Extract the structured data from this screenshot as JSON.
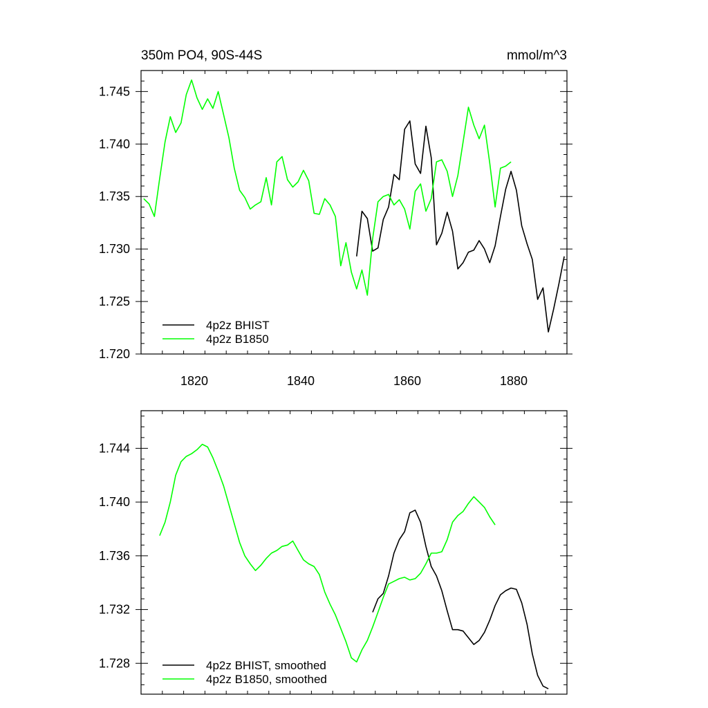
{
  "chart_data": [
    {
      "type": "line",
      "title_left": "350m PO4, 90S-44S",
      "title_right": "mmol/m^3",
      "xlim": [
        1810,
        1890
      ],
      "ylim": [
        1.72,
        1.747
      ],
      "yticks": [
        1.72,
        1.725,
        1.73,
        1.735,
        1.74,
        1.745
      ],
      "ytick_labels": [
        "1.720",
        "1.725",
        "1.730",
        "1.735",
        "1.740",
        "1.745"
      ],
      "xticks": [
        1820,
        1840,
        1860,
        1880
      ],
      "xtick_labels": [
        "1820",
        "1840",
        "1860",
        "1880"
      ],
      "legend_position": "bottom-left",
      "series": [
        {
          "name": "4p2z BHIST",
          "color": "#000000",
          "x": [
            1850.5,
            1851.5,
            1852.5,
            1853.5,
            1854.5,
            1855.5,
            1856.5,
            1857.5,
            1858.5,
            1859.5,
            1860.5,
            1861.5,
            1862.5,
            1863.5,
            1864.5,
            1865.5,
            1866.5,
            1867.5,
            1868.5,
            1869.5,
            1870.5,
            1871.5,
            1872.5,
            1873.5,
            1874.5,
            1875.5,
            1876.5,
            1877.5,
            1878.5,
            1879.5,
            1880.5,
            1881.5,
            1882.5,
            1883.5,
            1884.5,
            1885.5,
            1886.5,
            1887.5,
            1888.5,
            1889.5
          ],
          "y": [
            1.7293,
            1.7336,
            1.7329,
            1.7298,
            1.7301,
            1.7328,
            1.734,
            1.7371,
            1.7366,
            1.7414,
            1.7422,
            1.7381,
            1.7372,
            1.7417,
            1.7387,
            1.7304,
            1.7315,
            1.7335,
            1.7317,
            1.7281,
            1.7287,
            1.7297,
            1.7299,
            1.7308,
            1.73,
            1.7287,
            1.7303,
            1.7331,
            1.7357,
            1.7374,
            1.7356,
            1.7322,
            1.7305,
            1.729,
            1.7252,
            1.7263,
            1.7221,
            1.7243,
            1.7267,
            1.7293
          ]
        },
        {
          "name": "4p2z B1850",
          "color": "#00ff00",
          "x": [
            1810.5,
            1811.5,
            1812.5,
            1813.5,
            1814.5,
            1815.5,
            1816.5,
            1817.5,
            1818.5,
            1819.5,
            1820.5,
            1821.5,
            1822.5,
            1823.5,
            1824.5,
            1825.5,
            1826.5,
            1827.5,
            1828.5,
            1829.5,
            1830.5,
            1831.5,
            1832.5,
            1833.5,
            1834.5,
            1835.5,
            1836.5,
            1837.5,
            1838.5,
            1839.5,
            1840.5,
            1841.5,
            1842.5,
            1843.5,
            1844.5,
            1845.5,
            1846.5,
            1847.5,
            1848.5,
            1849.5,
            1850.5,
            1851.5,
            1852.5,
            1853.5,
            1854.5,
            1855.5,
            1856.5,
            1857.5,
            1858.5,
            1859.5,
            1860.5,
            1861.5,
            1862.5,
            1863.5,
            1864.5,
            1865.5,
            1866.5,
            1867.5,
            1868.5,
            1869.5,
            1870.5,
            1871.5,
            1872.5,
            1873.5,
            1874.5,
            1875.5,
            1876.5,
            1877.5,
            1878.5,
            1879.5
          ],
          "y": [
            1.7348,
            1.7343,
            1.7331,
            1.7367,
            1.7402,
            1.7426,
            1.7411,
            1.742,
            1.7447,
            1.7461,
            1.7444,
            1.7433,
            1.7443,
            1.7434,
            1.745,
            1.7428,
            1.7406,
            1.7377,
            1.7356,
            1.7349,
            1.7338,
            1.7342,
            1.7345,
            1.7368,
            1.7342,
            1.7383,
            1.7388,
            1.7366,
            1.7359,
            1.7364,
            1.7375,
            1.7365,
            1.7334,
            1.7333,
            1.7348,
            1.7342,
            1.7331,
            1.7284,
            1.7306,
            1.7278,
            1.7262,
            1.728,
            1.7256,
            1.731,
            1.7345,
            1.735,
            1.7352,
            1.7342,
            1.7347,
            1.7338,
            1.7319,
            1.7355,
            1.7362,
            1.7336,
            1.7348,
            1.7383,
            1.7385,
            1.7374,
            1.735,
            1.737,
            1.7402,
            1.7435,
            1.7418,
            1.7405,
            1.7418,
            1.7382,
            1.734,
            1.7377,
            1.7379,
            1.7383
          ]
        }
      ]
    },
    {
      "type": "line",
      "xlim": [
        1810,
        1890
      ],
      "ylim": [
        1.7257,
        1.7468
      ],
      "yticks": [
        1.728,
        1.732,
        1.736,
        1.74,
        1.744
      ],
      "ytick_labels": [
        "1.728",
        "1.732",
        "1.736",
        "1.740",
        "1.744"
      ],
      "xticks": [
        1820,
        1840,
        1860,
        1880
      ],
      "legend_position": "bottom-left",
      "series": [
        {
          "name": "4p2z BHIST, smoothed",
          "color": "#000000",
          "x": [
            1853.5,
            1854.5,
            1855.5,
            1856.5,
            1857.5,
            1858.5,
            1859.5,
            1860.5,
            1861.5,
            1862.5,
            1863.5,
            1864.5,
            1865.5,
            1866.5,
            1867.5,
            1868.5,
            1869.5,
            1870.5,
            1871.5,
            1872.5,
            1873.5,
            1874.5,
            1875.5,
            1876.5,
            1877.5,
            1878.5,
            1879.5,
            1880.5,
            1881.5,
            1882.5,
            1883.5,
            1884.5,
            1885.5,
            1886.5
          ],
          "y": [
            1.7318,
            1.7328,
            1.7332,
            1.7345,
            1.7362,
            1.7372,
            1.7378,
            1.7392,
            1.7394,
            1.7385,
            1.7367,
            1.7352,
            1.7345,
            1.7334,
            1.7319,
            1.7305,
            1.7305,
            1.7304,
            1.7299,
            1.7294,
            1.7297,
            1.7303,
            1.7312,
            1.7323,
            1.7331,
            1.7334,
            1.7336,
            1.7335,
            1.7325,
            1.7309,
            1.7287,
            1.7271,
            1.7263,
            1.7261
          ]
        },
        {
          "name": "4p2z B1850, smoothed",
          "color": "#00ff00",
          "x": [
            1813.5,
            1814.5,
            1815.5,
            1816.5,
            1817.5,
            1818.5,
            1819.5,
            1820.5,
            1821.5,
            1822.5,
            1823.5,
            1824.5,
            1825.5,
            1826.5,
            1827.5,
            1828.5,
            1829.5,
            1830.5,
            1831.5,
            1832.5,
            1833.5,
            1834.5,
            1835.5,
            1836.5,
            1837.5,
            1838.5,
            1839.5,
            1840.5,
            1841.5,
            1842.5,
            1843.5,
            1844.5,
            1845.5,
            1846.5,
            1847.5,
            1848.5,
            1849.5,
            1850.5,
            1851.5,
            1852.5,
            1853.5,
            1854.5,
            1855.5,
            1856.5,
            1857.5,
            1858.5,
            1859.5,
            1860.5,
            1861.5,
            1862.5,
            1863.5,
            1864.5,
            1865.5,
            1866.5,
            1867.5,
            1868.5,
            1869.5,
            1870.5,
            1871.5,
            1872.5,
            1873.5,
            1874.5,
            1875.5,
            1876.5
          ],
          "y": [
            1.7375,
            1.7385,
            1.74,
            1.742,
            1.743,
            1.7434,
            1.7436,
            1.7439,
            1.7443,
            1.7441,
            1.7433,
            1.7423,
            1.7412,
            1.7398,
            1.7384,
            1.737,
            1.736,
            1.7354,
            1.7349,
            1.7353,
            1.7358,
            1.7362,
            1.7364,
            1.7367,
            1.7368,
            1.7371,
            1.7364,
            1.7357,
            1.7354,
            1.7352,
            1.7346,
            1.7333,
            1.7324,
            1.7316,
            1.7306,
            1.7296,
            1.7284,
            1.7281,
            1.729,
            1.7297,
            1.7307,
            1.7318,
            1.7329,
            1.7339,
            1.7341,
            1.7343,
            1.7344,
            1.7342,
            1.7343,
            1.7347,
            1.7354,
            1.7362,
            1.7362,
            1.7363,
            1.7372,
            1.7385,
            1.739,
            1.7393,
            1.7399,
            1.7404,
            1.74,
            1.7396,
            1.7389,
            1.7383
          ]
        }
      ]
    }
  ]
}
